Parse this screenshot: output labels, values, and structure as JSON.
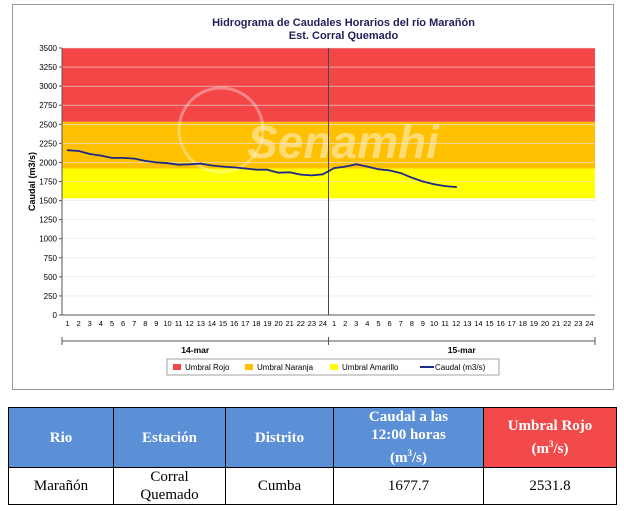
{
  "colors": {
    "rojo": "#f44646",
    "naranja": "#ffc000",
    "amarillo": "#ffff00",
    "caudal": "#1b2a8a",
    "header_blue": "#5b8fd6",
    "header_red": "#f24a4a"
  },
  "chart_data": {
    "type": "line",
    "title": "Hidrograma de Caudales Horarios del río Marañón",
    "subtitle": "Est. Corral Quemado",
    "ylabel": "Caudal  (m3/s)",
    "ylim": [
      0,
      3500
    ],
    "yticks": [
      0,
      250,
      500,
      750,
      1000,
      1250,
      1500,
      1750,
      2000,
      2250,
      2500,
      2750,
      3000,
      3250,
      3500
    ],
    "hours_per_day": 24,
    "days": [
      "14-mar",
      "15-mar"
    ],
    "hour_tick_labels": [
      "1",
      "2",
      "3",
      "4",
      "5",
      "6",
      "7",
      "8",
      "9",
      "10",
      "11",
      "12",
      "13",
      "14",
      "15",
      "16",
      "17",
      "18",
      "19",
      "20",
      "21",
      "22",
      "23",
      "24",
      "1",
      "2",
      "3",
      "4",
      "5",
      "6",
      "7",
      "8",
      "9",
      "10",
      "11",
      "12",
      "13",
      "14",
      "15",
      "16",
      "17",
      "18",
      "19",
      "20",
      "21",
      "22",
      "23",
      "24"
    ],
    "thresholds": [
      {
        "name": "Umbral Rojo",
        "from": 2531.8,
        "to": 3500,
        "color": "#f44646"
      },
      {
        "name": "Umbral Naranja",
        "from": 1920,
        "to": 2531.8,
        "color": "#ffc000"
      },
      {
        "name": "Umbral Amarillo",
        "from": 1530,
        "to": 1920,
        "color": "#ffff00"
      }
    ],
    "series": [
      {
        "name": "Caudal (m3/s)",
        "color": "#1b2a8a",
        "x": [
          1,
          2,
          3,
          4,
          5,
          6,
          7,
          8,
          9,
          10,
          11,
          12,
          13,
          14,
          15,
          16,
          17,
          18,
          19,
          20,
          21,
          22,
          23,
          24,
          25,
          26,
          27,
          28,
          29,
          30,
          31,
          32,
          33,
          34,
          35,
          36
        ],
        "values": [
          2160,
          2150,
          2110,
          2090,
          2060,
          2060,
          2050,
          2020,
          2000,
          1990,
          1970,
          1975,
          1985,
          1960,
          1945,
          1935,
          1920,
          1905,
          1905,
          1865,
          1870,
          1840,
          1830,
          1845,
          1925,
          1945,
          1975,
          1945,
          1910,
          1895,
          1860,
          1800,
          1750,
          1715,
          1690,
          1677.7
        ]
      }
    ],
    "legend": [
      "Umbral Rojo",
      "Umbral Naranja",
      "Umbral Amarillo",
      "Caudal (m3/s)"
    ],
    "legend_position": "bottom",
    "watermark": "Senamhi"
  },
  "table": {
    "headers": {
      "rio": "Rio",
      "estacion": "Estación",
      "distrito": "Distrito",
      "caudal_line1": "Caudal a las",
      "caudal_line2": "12:00 horas",
      "caudal_unit": "(m",
      "caudal_sup": "3",
      "caudal_unit_end": "/s)",
      "umbral_line1": "Umbral Rojo",
      "umbral_unit": "(m",
      "umbral_sup": "3",
      "umbral_unit_end": "/s)"
    },
    "row": {
      "rio": "Marañón",
      "estacion_line1": "Corral",
      "estacion_line2": "Quemado",
      "distrito": "Cumba",
      "caudal": "1677.7",
      "umbral": "2531.8"
    }
  }
}
